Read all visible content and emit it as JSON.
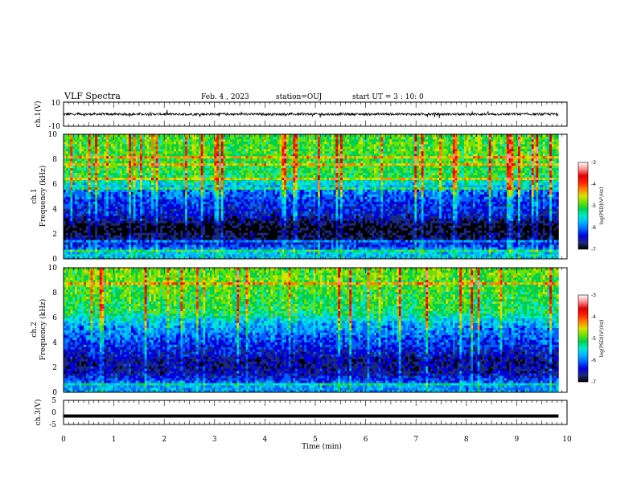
{
  "header": {
    "title": "VLF Spectra",
    "date": "Feb. 4 , 2023",
    "station": "station=OUJ",
    "start": "start UT =  3 : 10: 0"
  },
  "x_axis": {
    "label": "Time (min)",
    "range": [
      0,
      10
    ],
    "ticks": [
      "0",
      "1",
      "2",
      "3",
      "4",
      "5",
      "6",
      "7",
      "8",
      "9",
      "10"
    ],
    "data_end": 9.83
  },
  "panels": [
    {
      "id": "ch1-waveform",
      "label": "ch.1(V)",
      "ticks": [
        "10",
        "-10"
      ],
      "range": [
        -10,
        10
      ]
    },
    {
      "id": "ch1-spectrogram",
      "label_lines": [
        "ch.1",
        "Frequency (kHz)"
      ],
      "ticks": [
        "0",
        "2",
        "4",
        "6",
        "8",
        "10"
      ],
      "range": [
        0,
        10
      ]
    },
    {
      "id": "ch2-spectrogram",
      "label_lines": [
        "ch.2",
        "Frequency (kHz)"
      ],
      "ticks": [
        "0",
        "2",
        "4",
        "6",
        "8",
        "10"
      ],
      "range": [
        0,
        10
      ]
    },
    {
      "id": "ch3-waveform",
      "label": "ch.3(V)",
      "ticks": [
        "5",
        "0",
        "-5"
      ],
      "range": [
        -5,
        5
      ]
    }
  ],
  "colorbar": {
    "label": "log(PSD)(V²/Hz)",
    "ticks": [
      "-3",
      "-4",
      "-5",
      "-6",
      "-7"
    ],
    "range": [
      -7,
      -3
    ],
    "colors": [
      "#000000",
      "#1a2a80",
      "#0000d8",
      "#0060ff",
      "#00b4ff",
      "#00e8d0",
      "#00d050",
      "#70e000",
      "#d8e000",
      "#ff8000",
      "#ff2000",
      "#e00000",
      "#ff9090",
      "#ffffff"
    ]
  },
  "chart_data": [
    {
      "type": "line",
      "title": "VLF Spectra",
      "series_label": "ch.1(V)",
      "xlabel": "Time (min)",
      "ylabel": "ch.1(V)",
      "xlim": [
        0,
        10
      ],
      "ylim": [
        -10,
        10
      ],
      "x": [
        0,
        1,
        2,
        3,
        4,
        5,
        6,
        7,
        8,
        9,
        9.83
      ],
      "y": [
        0,
        0,
        0,
        0,
        0,
        0,
        0,
        0,
        0,
        0,
        0
      ],
      "envelope": [
        -1,
        1
      ]
    },
    {
      "type": "heatmap",
      "channel": "ch.1",
      "xlabel": "Time (min)",
      "ylabel": "Frequency (kHz)",
      "xlim": [
        0,
        10
      ],
      "ylim": [
        0,
        10
      ],
      "color_label": "log(PSD)(V²/Hz)",
      "zlim": [
        -7,
        -3
      ],
      "freq_kHz": [
        0.5,
        1.5,
        2.5,
        3.5,
        4.5,
        5.5,
        6.5,
        7.5,
        8.5,
        9.5
      ],
      "log_psd_typical": [
        -5.5,
        -6.5,
        -6.9,
        -6.3,
        -6.1,
        -5.8,
        -5.0,
        -4.9,
        -4.8,
        -4.8
      ]
    },
    {
      "type": "heatmap",
      "channel": "ch.2",
      "xlabel": "Time (min)",
      "ylabel": "Frequency (kHz)",
      "xlim": [
        0,
        10
      ],
      "ylim": [
        0,
        10
      ],
      "color_label": "log(PSD)(V²/Hz)",
      "zlim": [
        -7,
        -3
      ],
      "freq_kHz": [
        0.5,
        1.5,
        2.5,
        3.5,
        4.5,
        5.5,
        6.5,
        7.5,
        8.5,
        9.5
      ],
      "log_psd_typical": [
        -5.7,
        -6.4,
        -6.5,
        -6.2,
        -5.9,
        -5.6,
        -5.0,
        -4.9,
        -4.8,
        -4.7
      ]
    },
    {
      "type": "line",
      "series_label": "ch.3(V)",
      "xlabel": "Time (min)",
      "ylabel": "ch.3(V)",
      "xlim": [
        0,
        10
      ],
      "ylim": [
        -5,
        5
      ],
      "x": [
        0,
        1,
        2,
        3,
        4,
        5,
        6,
        7,
        8,
        9,
        9.83
      ],
      "y": [
        -1.5,
        -1.5,
        -1.5,
        -1.5,
        -1.5,
        -1.5,
        -1.5,
        -1.5,
        -1.5,
        -1.5,
        -1.5
      ]
    }
  ]
}
